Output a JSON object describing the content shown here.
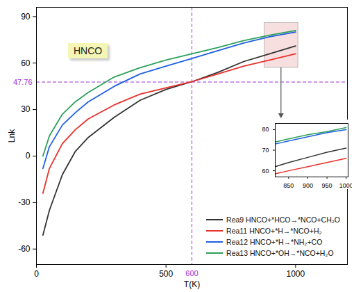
{
  "chart_data": [
    {
      "type": "line",
      "x_label": "T(K)",
      "y_label": "Lnk",
      "x": [
        25,
        50,
        100,
        150,
        200,
        300,
        400,
        500,
        600,
        700,
        800,
        900,
        1000
      ],
      "series": [
        {
          "name": "Rea9 HNCO+*HCO→*NCO+CH₂O",
          "color": "#333333",
          "values": [
            -51,
            -35,
            -12,
            3,
            12,
            25,
            36,
            43,
            48,
            54,
            61,
            66,
            71
          ]
        },
        {
          "name": "Rea11 HNCO+*H→*NCO+H₂",
          "color": "#e8312b",
          "values": [
            -24,
            -8,
            8,
            17,
            24,
            33,
            40,
            44,
            48,
            53,
            58,
            62,
            66
          ]
        },
        {
          "name": "Rea12 HNCO+*H→*NH₂+CO",
          "color": "#1f5fe0",
          "values": [
            -8,
            6,
            20,
            28,
            35,
            45,
            53,
            58,
            63,
            68,
            73,
            77,
            80
          ]
        },
        {
          "name": "Rea13 HNCO+*OH→*NCO+H₂O",
          "color": "#2ca05a",
          "values": [
            0,
            13,
            27,
            35,
            41,
            51,
            57,
            62,
            66,
            70,
            74.5,
            78,
            81
          ]
        }
      ],
      "xlim": [
        0,
        1200
      ],
      "ylim": [
        -70,
        96
      ],
      "xticks": [
        0,
        500,
        1000
      ],
      "yticks": [
        -60,
        -30,
        0,
        30,
        60,
        90
      ],
      "grid": false,
      "legend": "lower right",
      "reference_lines": [
        {
          "axis": "y",
          "value": 47.76,
          "label": "47.76",
          "color": "#9b30d9"
        },
        {
          "axis": "x",
          "value": 600,
          "label": "600",
          "color": "#9b30d9"
        }
      ],
      "zoom_region": {
        "x": [
          880,
          1010
        ],
        "y": [
          57,
          86
        ]
      },
      "annotations": [
        {
          "text": "HNCO"
        }
      ]
    },
    {
      "type": "line",
      "x": [
        815,
        850,
        900,
        950,
        1000
      ],
      "series": [
        {
          "name": "Rea9 HNCO+*HCO→*NCO+CH₂O",
          "color": "#333333",
          "values": [
            62,
            64,
            66.5,
            69,
            71
          ]
        },
        {
          "name": "Rea11 HNCO+*H→*NCO+H₂",
          "color": "#e8312b",
          "values": [
            58.5,
            60,
            62,
            64,
            66
          ]
        },
        {
          "name": "Rea12 HNCO+*H→*NH₂+CO",
          "color": "#1f5fe0",
          "values": [
            73,
            74.5,
            76.5,
            78.5,
            80
          ]
        },
        {
          "name": "Rea13 HNCO+*OH→*NCO+H₂O",
          "color": "#2ca05a",
          "values": [
            74,
            75.5,
            77.5,
            79,
            81
          ]
        }
      ],
      "xlim": [
        815,
        1005
      ],
      "ylim": [
        57,
        83
      ],
      "xticks": [
        850,
        900,
        950,
        1000
      ],
      "yticks": [
        60,
        70,
        80
      ],
      "grid": false
    }
  ]
}
